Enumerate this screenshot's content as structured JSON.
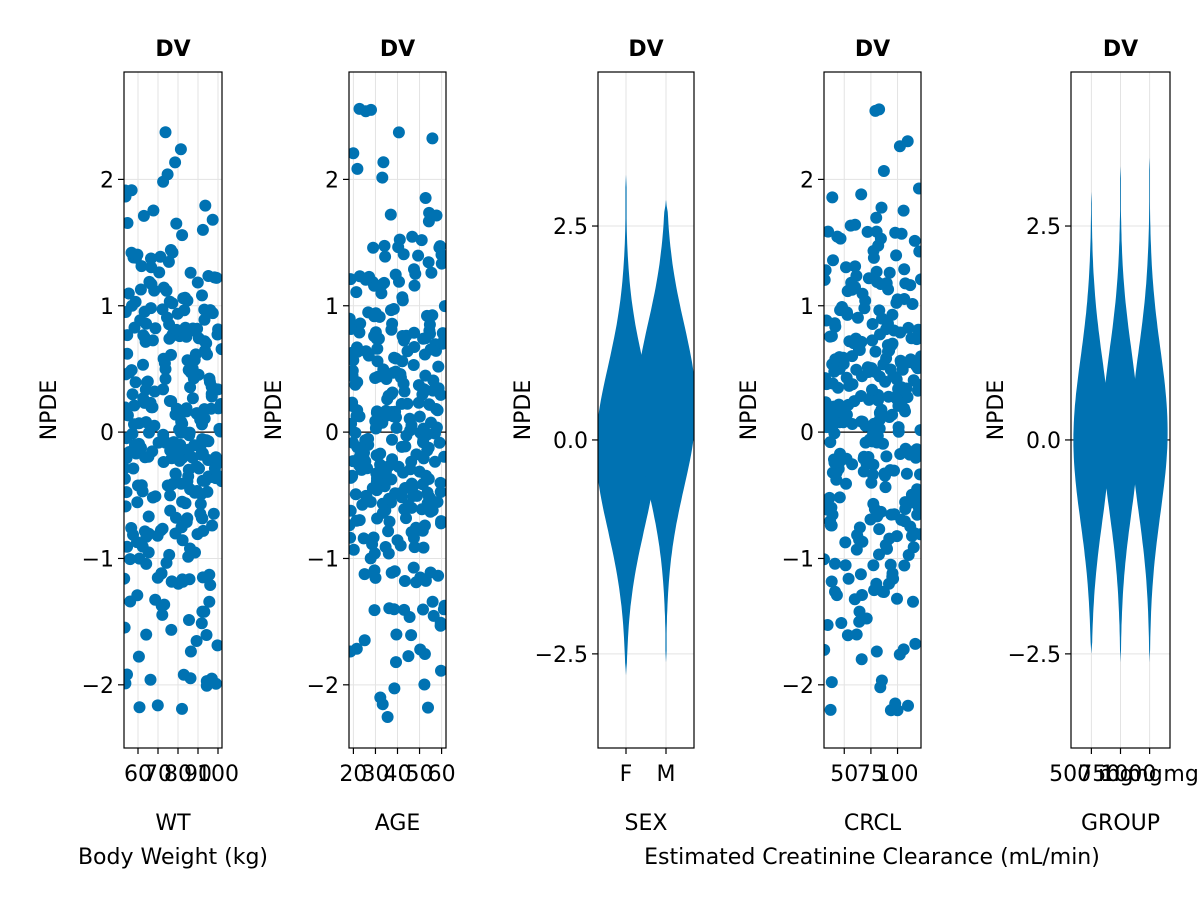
{
  "chart_data": [
    {
      "type": "scatter",
      "title": "DV",
      "ylabel": "NPDE",
      "xlabel": "WT",
      "xlabel2": "Body Weight (kg)",
      "xlim": [
        53,
        102
      ],
      "ylim": [
        -2.5,
        2.85
      ],
      "xticks": [
        60,
        70,
        80,
        90,
        100
      ],
      "xtick_labels": [
        "60",
        "70",
        "80",
        "90",
        "100"
      ],
      "yticks": [
        -2,
        -1,
        0,
        1,
        2
      ],
      "ytick_labels": [
        "−2",
        "−1",
        "0",
        "1",
        "2"
      ],
      "n_points": 320,
      "color": "#0072B2"
    },
    {
      "type": "scatter",
      "title": "DV",
      "ylabel": "NPDE",
      "xlabel": "AGE",
      "xlim": [
        18,
        62
      ],
      "ylim": [
        -2.5,
        2.85
      ],
      "xticks": [
        20,
        30,
        40,
        50,
        60
      ],
      "xtick_labels": [
        "20",
        "30",
        "40",
        "50",
        "60"
      ],
      "yticks": [
        -2,
        -1,
        0,
        1,
        2
      ],
      "ytick_labels": [
        "−2",
        "−1",
        "0",
        "1",
        "2"
      ],
      "n_points": 320,
      "color": "#0072B2"
    },
    {
      "type": "violin",
      "title": "DV",
      "ylabel": "NPDE",
      "xlabel": "SEX",
      "categories": [
        "F",
        "M"
      ],
      "ylim": [
        -3.6,
        4.3
      ],
      "yticks": [
        -2.5,
        0.0,
        2.5
      ],
      "ytick_labels": [
        "−2.5",
        "0.0",
        "2.5"
      ],
      "distributions": [
        {
          "name": "F",
          "center": -0.1,
          "min": -2.75,
          "max": 3.1
        },
        {
          "name": "M",
          "center": 0.4,
          "min": -2.6,
          "max": 2.8
        }
      ],
      "color": "#0072B2"
    },
    {
      "type": "scatter",
      "title": "DV",
      "ylabel": "NPDE",
      "xlabel": "CRCL",
      "xlabel2": "Estimated Creatinine Clearance (mL/min)",
      "xlim": [
        31,
        122
      ],
      "ylim": [
        -2.5,
        2.85
      ],
      "xticks": [
        50,
        75,
        100
      ],
      "xtick_labels": [
        "50",
        "75",
        "100"
      ],
      "yticks": [
        -2,
        -1,
        0,
        1,
        2
      ],
      "ytick_labels": [
        "−2",
        "−1",
        "0",
        "1",
        "2"
      ],
      "n_points": 320,
      "color": "#0072B2"
    },
    {
      "type": "violin",
      "title": "DV",
      "ylabel": "NPDE",
      "xlabel": "GROUP",
      "categories": [
        "500 mg",
        "750 mg",
        "1000 mg"
      ],
      "ylim": [
        -3.6,
        4.3
      ],
      "yticks": [
        -2.5,
        0.0,
        2.5
      ],
      "ytick_labels": [
        "−2.5",
        "0.0",
        "2.5"
      ],
      "distributions": [
        {
          "name": "500 mg",
          "center": 0.0,
          "min": -2.5,
          "max": 2.9
        },
        {
          "name": "750 mg",
          "center": 0.1,
          "min": -2.6,
          "max": 3.2
        },
        {
          "name": "1000 mg",
          "center": 0.1,
          "min": -2.6,
          "max": 3.3
        }
      ],
      "color": "#0072B2"
    }
  ]
}
